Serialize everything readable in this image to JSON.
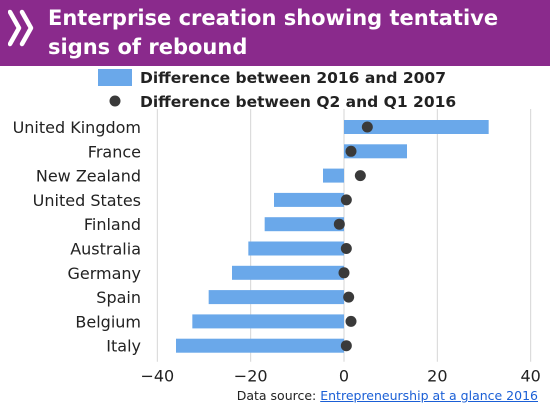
{
  "header": {
    "title": "Enterprise creation showing tentative signs of rebound",
    "logo_icon": "chevrons-logo-icon",
    "background_color": "#8a2a8c"
  },
  "source": {
    "prefix": "Data source: ",
    "link_text": "Entrepreneurship at a glance 2016"
  },
  "chart_data": {
    "type": "bar",
    "orientation": "horizontal",
    "title": "Enterprise creation showing tentative signs of rebound",
    "categories": [
      "United Kingdom",
      "France",
      "New Zealand",
      "United States",
      "Finland",
      "Australia",
      "Germany",
      "Spain",
      "Belgium",
      "Italy"
    ],
    "series": [
      {
        "name": "Difference between 2016 and 2007",
        "type": "bar",
        "color": "#6aa8ea",
        "values": [
          31,
          13.5,
          -4.5,
          -15,
          -17,
          -20.5,
          -24,
          -29,
          -32.5,
          -36
        ]
      },
      {
        "name": "Difference between Q2 and Q1 2016",
        "type": "scatter",
        "color": "#3a3a3a",
        "values": [
          5,
          1.5,
          3.5,
          0.5,
          -1,
          0.5,
          0,
          1,
          1.5,
          0.5
        ]
      }
    ],
    "xlim": [
      -42,
      42
    ],
    "xticks": [
      -40,
      -20,
      0,
      20,
      40
    ],
    "grid": true,
    "legend_position": "top"
  }
}
